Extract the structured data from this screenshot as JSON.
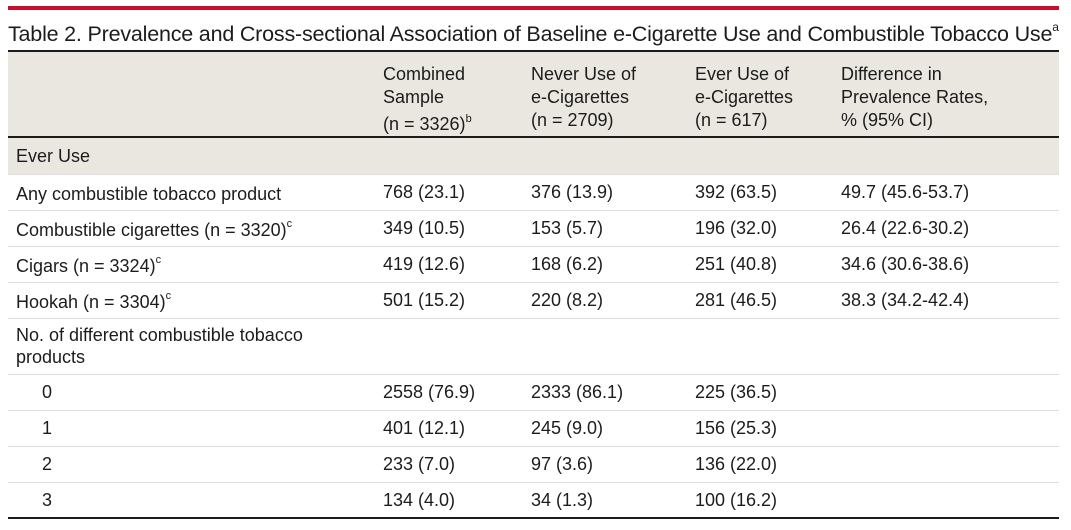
{
  "title": {
    "text": "Table 2. Prevalence and Cross-sectional Association of Baseline e-Cigarette Use and Combustible Tobacco Use",
    "sup": "a"
  },
  "header": {
    "col1": [
      "Combined",
      "Sample",
      "(n = 3326)"
    ],
    "col1_sup": "b",
    "col2": [
      "Never Use of",
      "e-Cigarettes",
      "(n = 2709)"
    ],
    "col3": [
      "Ever Use of",
      "e-Cigarettes",
      "(n = 617)"
    ],
    "col4": [
      "Difference in",
      "Prevalence Rates,",
      "% (95% CI)"
    ]
  },
  "section_ever": "Ever Use",
  "rows": [
    {
      "label": "Any combustible tobacco product",
      "sup": "",
      "combined": "768 (23.1)",
      "never": "376 (13.9)",
      "ever": "392 (63.5)",
      "diff": "49.7 (45.6-53.7)"
    },
    {
      "label": "Combustible cigarettes (n = 3320)",
      "sup": "c",
      "combined": "349 (10.5)",
      "never": "153 (5.7)",
      "ever": "196 (32.0)",
      "diff": "26.4 (22.6-30.2)"
    },
    {
      "label": "Cigars (n = 3324)",
      "sup": "c",
      "combined": "419 (12.6)",
      "never": "168 (6.2)",
      "ever": "251 (40.8)",
      "diff": "34.6 (30.6-38.6)"
    },
    {
      "label": "Hookah (n = 3304)",
      "sup": "c",
      "combined": "501 (15.2)",
      "never": "220 (8.2)",
      "ever": "281 (46.5)",
      "diff": "38.3 (34.2-42.4)"
    }
  ],
  "section_count": {
    "line1": "No. of different combustible tobacco",
    "line2": "products"
  },
  "count_rows": [
    {
      "label": "0",
      "combined": "2558 (76.9)",
      "never": "2333 (86.1)",
      "ever": "225 (36.5)",
      "diff": ""
    },
    {
      "label": "1",
      "combined": "401 (12.1)",
      "never": "245 (9.0)",
      "ever": "156 (25.3)",
      "diff": ""
    },
    {
      "label": "2",
      "combined": "233 (7.0)",
      "never": "97 (3.6)",
      "ever": "136 (22.0)",
      "diff": ""
    },
    {
      "label": "3",
      "combined": "134 (4.0)",
      "never": "34 (1.3)",
      "ever": "100 (16.2)",
      "diff": ""
    }
  ]
}
